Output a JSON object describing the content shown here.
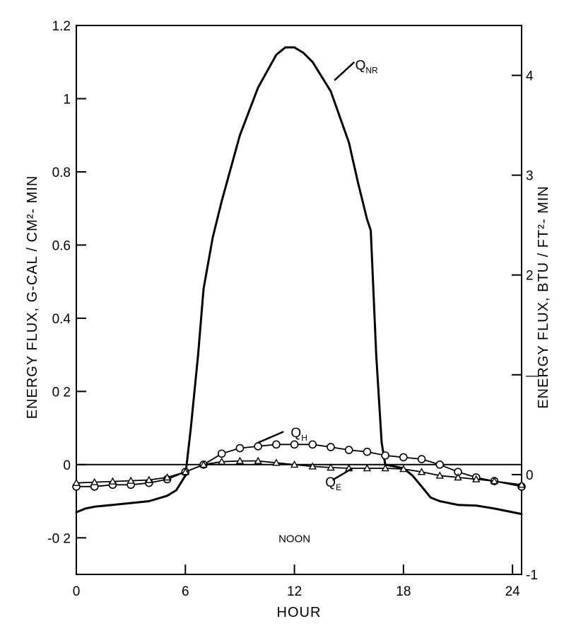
{
  "chart_data": {
    "type": "line",
    "title": "",
    "xlabel": "HOUR",
    "ylabel_left": "ENERGY FLUX,  G-CAL / CM²- MIN",
    "ylabel_right": "ENERGY FLUX,  BTU / FT²- MIN",
    "xlim": [
      0,
      24.5
    ],
    "ylim": [
      -0.3,
      1.2
    ],
    "ylim_right": [
      -1,
      4.5
    ],
    "x_ticks": [
      0,
      6,
      12,
      18,
      24
    ],
    "x_tick_labels": [
      "0",
      "6",
      "12",
      "18",
      "24"
    ],
    "y_ticks": [
      -0.2,
      0,
      0.2,
      0.4,
      0.6,
      0.8,
      1.0,
      1.2
    ],
    "y_tick_labels": [
      "-0 2",
      "0",
      "0 2",
      "0.4",
      "0.6",
      "0.8",
      "1",
      "1.2"
    ],
    "y_right_ticks": [
      -1,
      0,
      1,
      2,
      3,
      4
    ],
    "y_right_tick_labels": [
      "-1",
      "0",
      "—",
      "2",
      "3",
      "4"
    ],
    "annotations": [
      {
        "text": "NOON",
        "x": 12,
        "y": -0.2
      }
    ],
    "series": [
      {
        "name": "Q_NR",
        "label_main": "Q",
        "label_sub": "NR",
        "marker": "none",
        "x": [
          0,
          0.5,
          1,
          2,
          3,
          4,
          5,
          5.5,
          6,
          6.3,
          6.7,
          7,
          7.5,
          8,
          9,
          10,
          11,
          11.5,
          12,
          12.5,
          13,
          14,
          15,
          15.5,
          16,
          16.2,
          16.5,
          16.8,
          17,
          17.5,
          18,
          18.5,
          19,
          19.5,
          20,
          21,
          22,
          23,
          24.5
        ],
        "values": [
          -0.13,
          -0.12,
          -0.115,
          -0.11,
          -0.105,
          -0.1,
          -0.085,
          -0.07,
          -0.03,
          0.1,
          0.3,
          0.48,
          0.62,
          0.72,
          0.9,
          1.03,
          1.12,
          1.14,
          1.14,
          1.125,
          1.1,
          1.02,
          0.88,
          0.77,
          0.67,
          0.64,
          0.3,
          0.06,
          0.0,
          -0.005,
          -0.01,
          -0.03,
          -0.06,
          -0.09,
          -0.1,
          -0.11,
          -0.112,
          -0.12,
          -0.135
        ]
      },
      {
        "name": "Q_H",
        "label_main": "Q",
        "label_sub": "H",
        "marker": "circle",
        "x": [
          0,
          1,
          2,
          3,
          4,
          5,
          6,
          7,
          8,
          9,
          10,
          11,
          12,
          13,
          14,
          15,
          16,
          17,
          18,
          19,
          20,
          21,
          22,
          23,
          24.5
        ],
        "values": [
          -0.06,
          -0.06,
          -0.055,
          -0.055,
          -0.05,
          -0.04,
          -0.02,
          0.0,
          0.03,
          0.045,
          0.05,
          0.055,
          0.055,
          0.055,
          0.048,
          0.04,
          0.035,
          0.025,
          0.02,
          0.015,
          0.0,
          -0.02,
          -0.035,
          -0.045,
          -0.06
        ]
      },
      {
        "name": "Q_E",
        "label_main": "Q",
        "label_sub": "E",
        "marker": "triangle",
        "x": [
          0,
          1,
          2,
          3,
          4,
          5,
          6,
          7,
          8,
          9,
          10,
          11,
          12,
          13,
          14,
          15,
          16,
          17,
          18,
          19,
          20,
          21,
          22,
          23,
          24.5
        ],
        "values": [
          -0.05,
          -0.048,
          -0.046,
          -0.044,
          -0.042,
          -0.035,
          -0.02,
          0.0,
          0.008,
          0.01,
          0.01,
          0.005,
          0.0,
          -0.005,
          -0.008,
          -0.01,
          -0.01,
          -0.01,
          -0.012,
          -0.02,
          -0.03,
          -0.035,
          -0.04,
          -0.045,
          -0.055
        ]
      }
    ]
  }
}
